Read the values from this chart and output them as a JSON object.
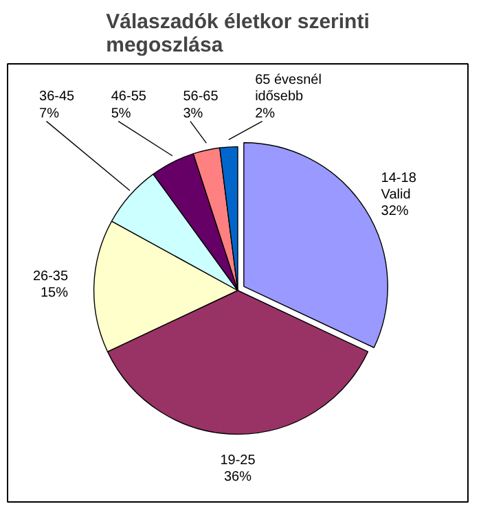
{
  "chart_data": {
    "type": "pie",
    "title": "Válaszadók életkor szerinti megoszlása",
    "categories": [
      "14-18 Valid",
      "19-25",
      "26-35",
      "36-45",
      "46-55",
      "56-65",
      "65 évesnél idősebb"
    ],
    "values": [
      32,
      36,
      15,
      7,
      5,
      3,
      2
    ],
    "value_labels": [
      "32%",
      "36%",
      "15%",
      "7%",
      "5%",
      "3%",
      "2%"
    ],
    "colors": [
      "#9999ff",
      "#993366",
      "#ffffcc",
      "#ccffff",
      "#660066",
      "#ff8080",
      "#0066cc"
    ]
  }
}
